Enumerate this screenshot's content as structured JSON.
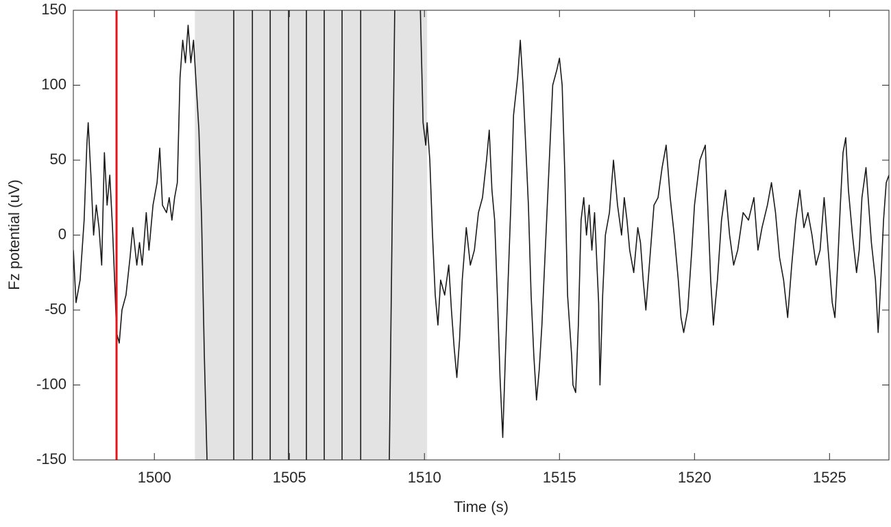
{
  "chart_data": {
    "type": "line",
    "xlabel": "Time (s)",
    "ylabel": "Fz potential (uV)",
    "xlim": [
      1497,
      1527.2
    ],
    "ylim": [
      -150,
      150
    ],
    "xticks": [
      1500,
      1505,
      1510,
      1515,
      1520,
      1525
    ],
    "yticks": [
      -150,
      -100,
      -50,
      0,
      50,
      100,
      150
    ],
    "color": "#1a1a1a",
    "marker_line": {
      "x": 1498.6,
      "color": "#e8141b"
    },
    "shaded_span": {
      "x": [
        1501.5,
        1510.1
      ],
      "color": "#e3e3e3"
    },
    "x": [
      1497.0,
      1497.1,
      1497.25,
      1497.4,
      1497.5,
      1497.55,
      1497.65,
      1497.75,
      1497.85,
      1497.95,
      1498.05,
      1498.15,
      1498.25,
      1498.35,
      1498.45,
      1498.55,
      1498.6,
      1498.7,
      1498.8,
      1498.95,
      1499.1,
      1499.2,
      1499.35,
      1499.45,
      1499.55,
      1499.7,
      1499.8,
      1499.95,
      1500.1,
      1500.2,
      1500.3,
      1500.45,
      1500.55,
      1500.65,
      1500.75,
      1500.85,
      1500.95,
      1501.05,
      1501.15,
      1501.25,
      1501.35,
      1501.45,
      1501.55,
      1501.65,
      1501.75,
      1501.85,
      1501.95,
      1502.5,
      1502.94,
      1502.94,
      1503.3,
      1503.63,
      1503.63,
      1504.0,
      1504.29,
      1504.29,
      1504.6,
      1504.97,
      1504.97,
      1505.3,
      1505.63,
      1505.63,
      1506.0,
      1506.29,
      1506.29,
      1506.6,
      1506.95,
      1506.95,
      1507.3,
      1507.64,
      1507.64,
      1508.2,
      1508.7,
      1508.9,
      1509.4,
      1509.85,
      1509.95,
      1510.05,
      1510.1,
      1510.2,
      1510.3,
      1510.4,
      1510.5,
      1510.6,
      1510.75,
      1510.9,
      1511.0,
      1511.1,
      1511.2,
      1511.3,
      1511.4,
      1511.55,
      1511.7,
      1511.85,
      1512.0,
      1512.15,
      1512.3,
      1512.4,
      1512.5,
      1512.6,
      1512.7,
      1512.8,
      1512.9,
      1513.0,
      1513.1,
      1513.2,
      1513.3,
      1513.45,
      1513.55,
      1513.65,
      1513.75,
      1513.85,
      1513.95,
      1514.05,
      1514.15,
      1514.25,
      1514.35,
      1514.45,
      1514.6,
      1514.75,
      1514.9,
      1515.0,
      1515.1,
      1515.2,
      1515.3,
      1515.45,
      1515.5,
      1515.6,
      1515.7,
      1515.8,
      1515.9,
      1516.0,
      1516.1,
      1516.2,
      1516.3,
      1516.45,
      1516.5,
      1516.6,
      1516.7,
      1516.85,
      1517.0,
      1517.15,
      1517.3,
      1517.4,
      1517.5,
      1517.6,
      1517.75,
      1517.9,
      1518.0,
      1518.1,
      1518.2,
      1518.35,
      1518.5,
      1518.65,
      1518.8,
      1518.95,
      1519.1,
      1519.25,
      1519.4,
      1519.5,
      1519.6,
      1519.75,
      1519.9,
      1520.0,
      1520.1,
      1520.2,
      1520.3,
      1520.4,
      1520.5,
      1520.6,
      1520.7,
      1520.85,
      1521.0,
      1521.15,
      1521.3,
      1521.45,
      1521.6,
      1521.8,
      1522.0,
      1522.2,
      1522.35,
      1522.5,
      1522.7,
      1522.85,
      1523.0,
      1523.15,
      1523.3,
      1523.45,
      1523.6,
      1523.75,
      1523.9,
      1524.05,
      1524.2,
      1524.35,
      1524.5,
      1524.65,
      1524.8,
      1524.95,
      1525.1,
      1525.2,
      1525.3,
      1525.4,
      1525.5,
      1525.6,
      1525.7,
      1525.85,
      1526.0,
      1526.1,
      1526.2,
      1526.35,
      1526.45,
      1526.55,
      1526.7,
      1526.8,
      1526.9,
      1527.0,
      1527.1,
      1527.2
    ],
    "values": [
      -10,
      -45,
      -30,
      10,
      60,
      75,
      40,
      0,
      20,
      5,
      -20,
      55,
      20,
      40,
      5,
      -40,
      -65,
      -72,
      -50,
      -40,
      -15,
      5,
      -20,
      -5,
      -20,
      15,
      -10,
      20,
      35,
      58,
      20,
      15,
      25,
      10,
      25,
      35,
      105,
      130,
      115,
      140,
      115,
      130,
      100,
      70,
      10,
      -80,
      -150,
      null,
      -150,
      150,
      null,
      150,
      -150,
      null,
      -150,
      150,
      null,
      150,
      -150,
      null,
      -150,
      150,
      null,
      150,
      -150,
      null,
      -150,
      150,
      null,
      150,
      -150,
      null,
      -150,
      150,
      null,
      150,
      75,
      60,
      75,
      50,
      0,
      -40,
      -60,
      -30,
      -40,
      -20,
      -50,
      -75,
      -95,
      -70,
      -30,
      5,
      -20,
      -10,
      15,
      25,
      50,
      70,
      30,
      10,
      -40,
      -95,
      -135,
      -80,
      -30,
      20,
      80,
      105,
      130,
      100,
      60,
      20,
      -40,
      -80,
      -110,
      -90,
      -60,
      -20,
      40,
      100,
      110,
      118,
      100,
      40,
      -40,
      -80,
      -100,
      -105,
      -60,
      10,
      25,
      0,
      20,
      -10,
      15,
      -45,
      -100,
      -40,
      0,
      15,
      50,
      20,
      0,
      25,
      10,
      -10,
      -25,
      5,
      -5,
      -30,
      -50,
      -15,
      20,
      25,
      45,
      60,
      25,
      0,
      -30,
      -55,
      -65,
      -50,
      -10,
      20,
      35,
      50,
      55,
      60,
      15,
      -30,
      -60,
      -30,
      10,
      30,
      0,
      -20,
      -10,
      15,
      10,
      25,
      -10,
      5,
      20,
      35,
      15,
      -15,
      -30,
      -55,
      -20,
      10,
      30,
      5,
      15,
      0,
      -20,
      -10,
      25,
      -10,
      -45,
      -55,
      -20,
      20,
      55,
      65,
      30,
      0,
      -25,
      -10,
      25,
      45,
      20,
      -5,
      -30,
      -65,
      -30,
      10,
      35,
      40
    ]
  }
}
